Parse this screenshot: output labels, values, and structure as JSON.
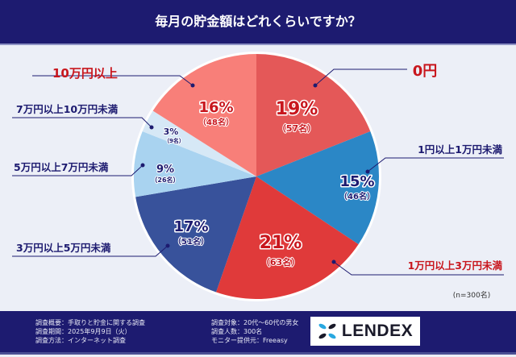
{
  "header": {
    "title": "毎月の貯金額はどれくらいですか？"
  },
  "chart_data": {
    "type": "pie",
    "title": "毎月の貯金額はどれくらいですか？",
    "total_note": "(n=300名)",
    "slices": [
      {
        "label": "0円",
        "percent": 19,
        "count": 57,
        "percent_text": "19%",
        "count_text": "（57名）",
        "color": "#e45858",
        "label_color": "#c8161d"
      },
      {
        "label": "1円以上1万円未満",
        "percent": 15,
        "count": 46,
        "percent_text": "15%",
        "count_text": "（46名）",
        "color": "#2b87c6",
        "label_color": "#1d1b70"
      },
      {
        "label": "1万円以上3万円未満",
        "percent": 21,
        "count": 63,
        "percent_text": "21%",
        "count_text": "（63名）",
        "color": "#e03a3a",
        "label_color": "#c8161d"
      },
      {
        "label": "3万円以上5万円未満",
        "percent": 17,
        "count": 51,
        "percent_text": "17%",
        "count_text": "（51名）",
        "color": "#38529b",
        "label_color": "#1d1b70"
      },
      {
        "label": "5万円以上7万円未満",
        "percent": 9,
        "count": 26,
        "percent_text": "9%",
        "count_text": "（26名）",
        "color": "#a9d3f0",
        "label_color": "#1d1b70"
      },
      {
        "label": "7万円以上10万円未満",
        "percent": 3,
        "count": 9,
        "percent_text": "3%",
        "count_text": "（9名）",
        "color": "#d6e8f6",
        "label_color": "#1d1b70"
      },
      {
        "label": "10万円以上",
        "percent": 16,
        "count": 48,
        "percent_text": "16%",
        "count_text": "（48名）",
        "color": "#f87f79",
        "label_color": "#c8161d"
      }
    ]
  },
  "footer": {
    "left": [
      "調査概要：手取りと貯金に関する調査",
      "調査期間：2025年9月9日（火）",
      "調査方法：インターネット調査"
    ],
    "right": [
      "調査対象：20代〜60代の男女",
      "調査人数：300名",
      "モニター提供元：Freeasy"
    ],
    "logo": "LENDEX"
  }
}
